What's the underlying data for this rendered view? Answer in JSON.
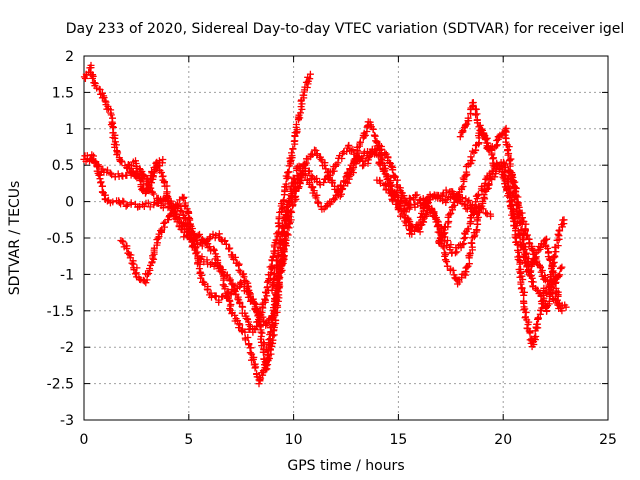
{
  "chart_data": {
    "type": "scatter",
    "title": "Day 233 of 2020, Sidereal Day-to-day VTEC variation (SDTVAR) for receiver igel",
    "xlabel": "GPS time / hours",
    "ylabel": "SDTVAR / TECUs",
    "xlim": [
      0,
      25
    ],
    "ylim": [
      -3,
      2
    ],
    "xticks": [
      0,
      5,
      10,
      15,
      20,
      25
    ],
    "yticks": [
      -3,
      -2.5,
      -2,
      -1.5,
      -1,
      -0.5,
      0,
      0.5,
      1,
      1.5,
      2
    ],
    "grid": true,
    "marker": "+",
    "color": "#ff0000",
    "series": [
      {
        "values": [
          [
            0,
            1.7
          ],
          [
            0.3,
            1.85
          ],
          [
            0.5,
            1.6
          ],
          [
            0.8,
            1.5
          ],
          [
            1.1,
            1.3
          ],
          [
            1.3,
            1.2
          ],
          [
            1.5,
            0.75
          ],
          [
            1.8,
            0.55
          ],
          [
            2.2,
            0.45
          ],
          [
            2.6,
            0.35
          ],
          [
            3.0,
            0.25
          ],
          [
            3.3,
            0.1
          ],
          [
            3.8,
            -0.05
          ],
          [
            4.2,
            -0.05
          ],
          [
            4.6,
            -0.1
          ],
          [
            4.9,
            -0.3
          ],
          [
            5.2,
            -0.6
          ],
          [
            5.5,
            -0.75
          ],
          [
            6.0,
            -0.85
          ],
          [
            6.5,
            -0.9
          ],
          [
            7.0,
            -1.1
          ],
          [
            7.3,
            -1.3
          ],
          [
            7.6,
            -1.5
          ],
          [
            8.0,
            -1.8
          ],
          [
            8.4,
            -1.6
          ],
          [
            8.7,
            -1.3
          ],
          [
            9.0,
            -0.8
          ],
          [
            9.3,
            -0.3
          ],
          [
            9.6,
            0.2
          ],
          [
            9.9,
            0.6
          ],
          [
            10.2,
            1.1
          ],
          [
            10.5,
            1.5
          ],
          [
            10.8,
            1.75
          ]
        ]
      },
      {
        "values": [
          [
            0,
            0.65
          ],
          [
            0.4,
            0.6
          ],
          [
            0.8,
            0.45
          ],
          [
            1.2,
            0.4
          ],
          [
            1.6,
            0.35
          ],
          [
            2.0,
            0.35
          ],
          [
            2.3,
            0.4
          ],
          [
            2.6,
            0.3
          ],
          [
            2.9,
            0.1
          ],
          [
            3.2,
            0.3
          ],
          [
            3.5,
            0.55
          ],
          [
            3.8,
            0.3
          ],
          [
            4.1,
            0.0
          ],
          [
            4.4,
            -0.2
          ],
          [
            4.8,
            -0.35
          ],
          [
            5.2,
            -0.5
          ],
          [
            5.6,
            -0.6
          ],
          [
            6.0,
            -0.5
          ],
          [
            6.4,
            -0.45
          ],
          [
            6.8,
            -0.6
          ],
          [
            7.2,
            -0.8
          ],
          [
            7.6,
            -1.0
          ],
          [
            8.0,
            -1.3
          ],
          [
            8.4,
            -1.7
          ],
          [
            8.7,
            -2.3
          ],
          [
            9.0,
            -1.9
          ],
          [
            9.3,
            -1.2
          ],
          [
            9.5,
            -0.6
          ],
          [
            9.7,
            -0.1
          ],
          [
            10.0,
            0.3
          ],
          [
            10.3,
            0.5
          ],
          [
            10.6,
            0.45
          ],
          [
            11.0,
            0.3
          ],
          [
            11.4,
            0.25
          ],
          [
            11.8,
            0.4
          ],
          [
            12.2,
            0.6
          ],
          [
            12.6,
            0.75
          ],
          [
            13.0,
            0.65
          ],
          [
            13.4,
            0.5
          ],
          [
            13.8,
            0.7
          ],
          [
            14.2,
            0.5
          ],
          [
            14.6,
            0.2
          ],
          [
            15.0,
            0.05
          ],
          [
            15.4,
            -0.1
          ],
          [
            15.8,
            -0.05
          ],
          [
            16.2,
            -0.05
          ],
          [
            16.6,
            0.05
          ],
          [
            17.0,
            0.1
          ],
          [
            17.5,
            0.15
          ],
          [
            18.0,
            0.05
          ],
          [
            18.5,
            -0.05
          ],
          [
            19.0,
            -0.1
          ],
          [
            19.4,
            -0.2
          ]
        ]
      },
      {
        "values": [
          [
            0,
            0.55
          ],
          [
            0.3,
            0.6
          ],
          [
            0.6,
            0.5
          ],
          [
            0.8,
            0.3
          ],
          [
            1.0,
            0.0
          ],
          [
            1.3,
            0.0
          ],
          [
            1.7,
            0.0
          ],
          [
            2.1,
            -0.05
          ],
          [
            2.5,
            -0.05
          ],
          [
            2.9,
            -0.05
          ],
          [
            3.3,
            -0.05
          ],
          [
            3.6,
            0.0
          ],
          [
            3.9,
            0.05
          ],
          [
            4.2,
            -0.1
          ],
          [
            4.5,
            -0.3
          ],
          [
            4.8,
            -0.45
          ],
          [
            5.1,
            -0.5
          ],
          [
            5.4,
            -0.45
          ],
          [
            5.8,
            -0.55
          ],
          [
            6.2,
            -0.7
          ],
          [
            6.6,
            -1.0
          ],
          [
            7.0,
            -1.5
          ],
          [
            7.4,
            -1.7
          ],
          [
            7.8,
            -1.9
          ],
          [
            8.1,
            -2.2
          ],
          [
            8.4,
            -2.5
          ],
          [
            8.7,
            -2.2
          ],
          [
            9.0,
            -1.6
          ],
          [
            9.3,
            -1.0
          ],
          [
            9.6,
            -0.6
          ]
        ]
      },
      {
        "values": [
          [
            1.7,
            -0.55
          ],
          [
            2.0,
            -0.6
          ],
          [
            2.3,
            -0.8
          ],
          [
            2.6,
            -1.05
          ],
          [
            2.9,
            -1.1
          ],
          [
            3.2,
            -0.85
          ],
          [
            3.5,
            -0.55
          ],
          [
            3.8,
            -0.35
          ],
          [
            4.1,
            -0.2
          ],
          [
            4.4,
            -0.05
          ],
          [
            4.7,
            0.05
          ],
          [
            5.0,
            -0.15
          ],
          [
            5.3,
            -0.6
          ],
          [
            5.6,
            -1.05
          ],
          [
            6.0,
            -1.25
          ],
          [
            6.4,
            -1.35
          ],
          [
            6.8,
            -1.3
          ],
          [
            7.2,
            -1.2
          ],
          [
            7.5,
            -1.1
          ],
          [
            7.8,
            -1.25
          ],
          [
            8.1,
            -1.4
          ],
          [
            8.4,
            -1.55
          ],
          [
            8.7,
            -1.7
          ],
          [
            9.0,
            -1.6
          ],
          [
            9.3,
            -1.1
          ],
          [
            9.6,
            -0.6
          ],
          [
            9.9,
            -0.1
          ],
          [
            10.2,
            0.2
          ],
          [
            10.5,
            0.4
          ],
          [
            10.8,
            0.25
          ],
          [
            11.1,
            0.05
          ],
          [
            11.4,
            -0.1
          ],
          [
            11.7,
            -0.05
          ],
          [
            12.0,
            0.1
          ],
          [
            12.4,
            0.3
          ],
          [
            12.8,
            0.5
          ],
          [
            13.2,
            0.8
          ],
          [
            13.6,
            1.1
          ],
          [
            14.0,
            0.8
          ],
          [
            14.4,
            0.4
          ],
          [
            14.8,
            0.1
          ],
          [
            15.2,
            -0.1
          ],
          [
            15.6,
            -0.3
          ],
          [
            16.0,
            -0.4
          ],
          [
            16.4,
            -0.1
          ],
          [
            16.8,
            -0.2
          ],
          [
            17.2,
            -0.5
          ],
          [
            17.6,
            -0.7
          ],
          [
            18.0,
            -0.6
          ],
          [
            18.4,
            -0.3
          ],
          [
            18.8,
            0.1
          ],
          [
            19.2,
            0.3
          ],
          [
            19.6,
            0.5
          ],
          [
            20.0,
            0.55
          ],
          [
            20.4,
            0.35
          ],
          [
            20.7,
            0.0
          ],
          [
            21.0,
            -0.3
          ],
          [
            21.3,
            -0.6
          ],
          [
            21.6,
            -0.8
          ],
          [
            21.9,
            -1.0
          ],
          [
            22.2,
            -1.2
          ],
          [
            22.5,
            -1.1
          ],
          [
            22.8,
            -0.9
          ]
        ]
      },
      {
        "values": [
          [
            2.1,
            0.5
          ],
          [
            2.4,
            0.55
          ],
          [
            2.7,
            0.4
          ],
          [
            3.0,
            0.3
          ],
          [
            3.4,
            0.45
          ],
          [
            3.8,
            0.6
          ],
          [
            9.0,
            -1.2
          ],
          [
            9.3,
            -0.7
          ],
          [
            9.6,
            -0.2
          ],
          [
            9.9,
            0.1
          ],
          [
            10.2,
            0.3
          ],
          [
            10.6,
            0.55
          ],
          [
            11.0,
            0.7
          ],
          [
            11.4,
            0.55
          ],
          [
            11.8,
            0.3
          ],
          [
            12.2,
            0.1
          ],
          [
            12.6,
            0.3
          ],
          [
            13.0,
            0.55
          ],
          [
            13.4,
            0.65
          ],
          [
            13.8,
            0.7
          ],
          [
            14.2,
            0.75
          ],
          [
            14.6,
            0.55
          ],
          [
            15.0,
            0.2
          ],
          [
            15.4,
            -0.05
          ],
          [
            15.8,
            0.1
          ],
          [
            16.2,
            0.0
          ],
          [
            16.6,
            -0.1
          ],
          [
            17.0,
            -0.5
          ],
          [
            17.4,
            -0.9
          ],
          [
            17.8,
            -1.1
          ],
          [
            18.2,
            -1.0
          ],
          [
            18.6,
            -0.5
          ],
          [
            19.0,
            0.0
          ],
          [
            19.4,
            0.3
          ],
          [
            19.8,
            0.5
          ],
          [
            20.2,
            0.3
          ],
          [
            20.5,
            -0.2
          ],
          [
            20.8,
            -0.9
          ],
          [
            21.1,
            -1.6
          ],
          [
            21.4,
            -2.0
          ],
          [
            21.7,
            -1.6
          ],
          [
            22.0,
            -1.2
          ],
          [
            22.4,
            -1.3
          ],
          [
            22.8,
            -1.5
          ]
        ]
      },
      {
        "values": [
          [
            16.9,
            -0.6
          ],
          [
            17.2,
            -0.4
          ],
          [
            17.6,
            -0.1
          ],
          [
            18.0,
            0.2
          ],
          [
            18.3,
            0.45
          ],
          [
            18.7,
            0.75
          ],
          [
            19.0,
            1.0
          ],
          [
            19.3,
            0.7
          ],
          [
            19.6,
            0.75
          ],
          [
            19.9,
            0.95
          ],
          [
            20.1,
            1.0
          ],
          [
            20.3,
            0.6
          ],
          [
            20.6,
            0.0
          ],
          [
            20.9,
            -0.4
          ],
          [
            21.2,
            -0.9
          ],
          [
            21.5,
            -1.2
          ],
          [
            21.8,
            -1.3
          ],
          [
            22.1,
            -1.5
          ],
          [
            22.4,
            -0.8
          ],
          [
            22.7,
            -0.4
          ],
          [
            22.9,
            -0.25
          ]
        ]
      },
      {
        "values": [
          [
            18.0,
            0.9
          ],
          [
            18.3,
            1.1
          ],
          [
            18.6,
            1.35
          ],
          [
            18.9,
            1.0
          ],
          [
            19.2,
            0.85
          ],
          [
            19.6,
            0.5
          ],
          [
            20.0,
            0.4
          ],
          [
            20.4,
            -0.1
          ],
          [
            20.8,
            -0.5
          ],
          [
            21.2,
            -1.0
          ],
          [
            21.6,
            -0.7
          ],
          [
            22.0,
            -0.5
          ],
          [
            22.4,
            -1.0
          ],
          [
            22.7,
            -1.45
          ],
          [
            23.0,
            -1.45
          ]
        ]
      },
      {
        "values": [
          [
            14.0,
            0.3
          ],
          [
            14.4,
            0.2
          ],
          [
            14.8,
            0.0
          ],
          [
            15.2,
            -0.2
          ],
          [
            15.6,
            -0.45
          ],
          [
            16.0,
            -0.3
          ],
          [
            16.4,
            0.05
          ],
          [
            16.8,
            0.1
          ],
          [
            17.2,
            0.0
          ],
          [
            17.6,
            0.1
          ],
          [
            18.0,
            0.0
          ],
          [
            18.4,
            -0.1
          ],
          [
            18.8,
            -0.15
          ]
        ]
      }
    ]
  }
}
